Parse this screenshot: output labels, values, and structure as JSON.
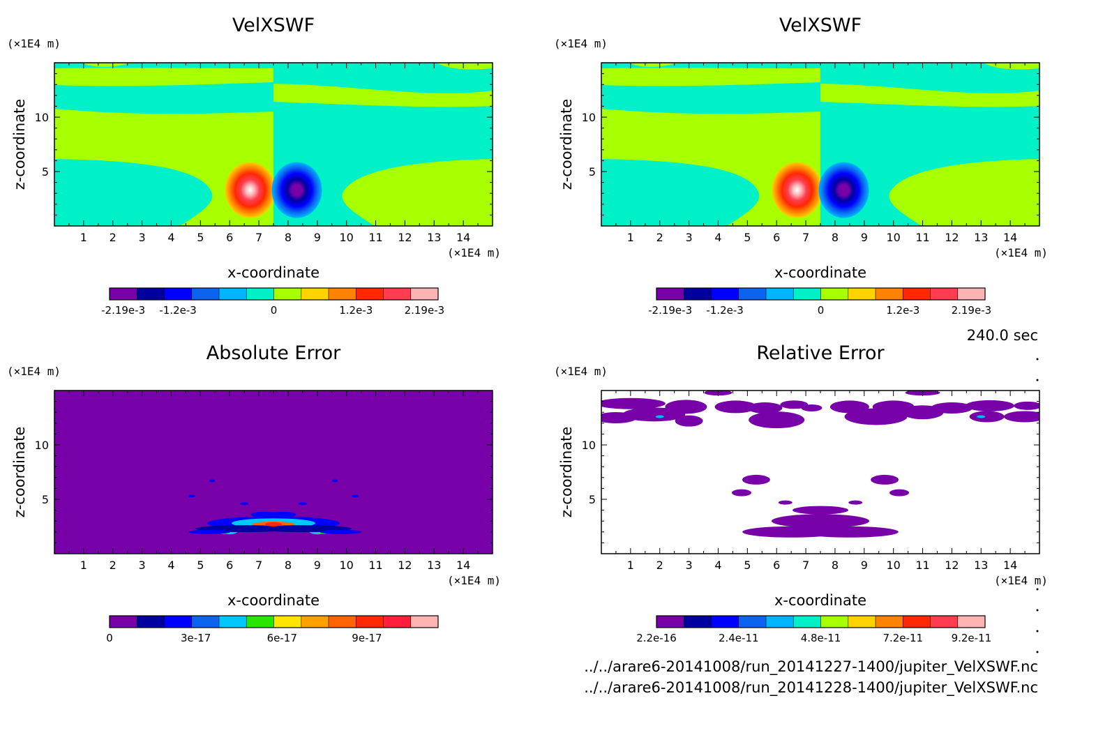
{
  "figure": {
    "time_label": "240.0 sec",
    "files": [
      "../../arare6-20141008/run_20141227-1400/jupiter_VelXSWF.nc",
      "../../arare6-20141008/run_20141228-1400/jupiter_VelXSWF.nc"
    ]
  },
  "chart_data": [
    {
      "type": "heatmap",
      "title": "VelXSWF",
      "xlabel": "x-coordinate",
      "ylabel": "z-coordinate",
      "x_unit": "(×1E4 m)",
      "y_unit": "(×1E4 m)",
      "xlim": [
        0,
        15
      ],
      "ylim": [
        0,
        15
      ],
      "x_ticks": [
        1,
        2,
        3,
        4,
        5,
        6,
        7,
        8,
        9,
        10,
        11,
        12,
        13,
        14
      ],
      "y_ticks": [
        5,
        10
      ],
      "colorbar": {
        "colors": [
          "#7800a8",
          "#0000a0",
          "#0000ff",
          "#0a64f0",
          "#00b4ff",
          "#00f0c8",
          "#a8ff00",
          "#ffd200",
          "#ff8200",
          "#ff2800",
          "#ff3c50",
          "#ffb4b4"
        ],
        "tick_labels": [
          "-2.19e-3",
          "-1.2e-3",
          "0",
          "1.2e-3",
          "2.19e-3"
        ],
        "tick_values": [
          -0.00219,
          -0.0012,
          0,
          0.0012,
          0.00219
        ]
      }
    },
    {
      "type": "heatmap",
      "title": "VelXSWF",
      "xlabel": "x-coordinate",
      "ylabel": "z-coordinate",
      "x_unit": "(×1E4 m)",
      "y_unit": "(×1E4 m)",
      "xlim": [
        0,
        15
      ],
      "ylim": [
        0,
        15
      ],
      "x_ticks": [
        1,
        2,
        3,
        4,
        5,
        6,
        7,
        8,
        9,
        10,
        11,
        12,
        13,
        14
      ],
      "y_ticks": [
        5,
        10
      ],
      "colorbar": {
        "colors": [
          "#7800a8",
          "#0000a0",
          "#0000ff",
          "#0a64f0",
          "#00b4ff",
          "#00f0c8",
          "#a8ff00",
          "#ffd200",
          "#ff8200",
          "#ff2800",
          "#ff3c50",
          "#ffb4b4"
        ],
        "tick_labels": [
          "-2.19e-3",
          "-1.2e-3",
          "0",
          "1.2e-3",
          "2.19e-3"
        ],
        "tick_values": [
          -0.00219,
          -0.0012,
          0,
          0.0012,
          0.00219
        ]
      }
    },
    {
      "type": "heatmap",
      "title": "Absolute Error",
      "xlabel": "x-coordinate",
      "ylabel": "z-coordinate",
      "x_unit": "(×1E4 m)",
      "y_unit": "(×1E4 m)",
      "xlim": [
        0,
        15
      ],
      "ylim": [
        0,
        15
      ],
      "x_ticks": [
        1,
        2,
        3,
        4,
        5,
        6,
        7,
        8,
        9,
        10,
        11,
        12,
        13,
        14
      ],
      "y_ticks": [
        5,
        10
      ],
      "colorbar": {
        "colors": [
          "#7800a8",
          "#0000a0",
          "#0000ff",
          "#0a64f0",
          "#00c8ff",
          "#28e600",
          "#ffe600",
          "#ffa000",
          "#ff6400",
          "#ff2800",
          "#ff1e3c",
          "#ffb4b4"
        ],
        "tick_labels": [
          "0",
          "3e-17",
          "6e-17",
          "9e-17"
        ],
        "tick_values": [
          0,
          3e-17,
          6e-17,
          9e-17
        ]
      }
    },
    {
      "type": "heatmap",
      "title": "Relative Error",
      "xlabel": "x-coordinate",
      "ylabel": "z-coordinate",
      "x_unit": "(×1E4 m)",
      "y_unit": "(×1E4 m)",
      "xlim": [
        0,
        15
      ],
      "ylim": [
        0,
        15
      ],
      "x_ticks": [
        1,
        2,
        3,
        4,
        5,
        6,
        7,
        8,
        9,
        10,
        11,
        12,
        13,
        14
      ],
      "y_ticks": [
        5,
        10
      ],
      "colorbar": {
        "colors": [
          "#7800a8",
          "#0000a0",
          "#0000ff",
          "#0a64f0",
          "#00b4ff",
          "#00f0c8",
          "#a8ff00",
          "#ffd200",
          "#ff8200",
          "#ff2800",
          "#ff3c50",
          "#ffb4b4"
        ],
        "tick_labels": [
          "2.2e-16",
          "2.4e-11",
          "4.8e-11",
          "7.2e-11",
          "9.2e-11"
        ],
        "tick_values": [
          2.2e-16,
          2.4e-11,
          4.8e-11,
          7.2e-11,
          9.2e-11
        ]
      }
    }
  ]
}
